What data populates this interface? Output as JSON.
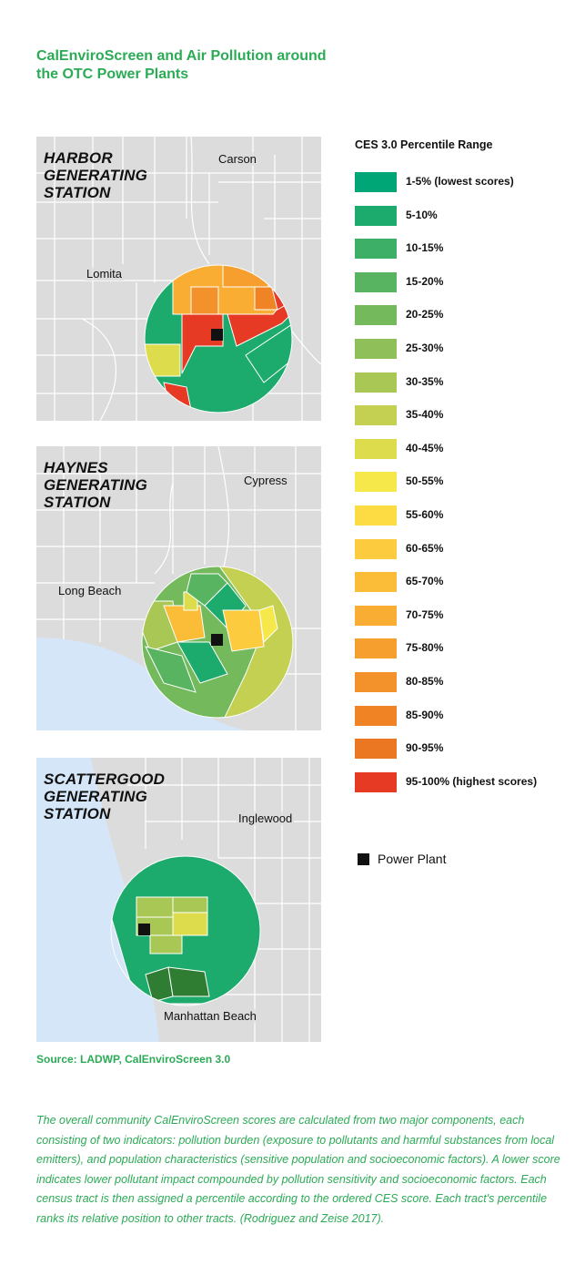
{
  "title": "CalEnviroScreen and Air Pollution around the OTC Power Plants",
  "maps": [
    {
      "station": "HARBOR GENERATING STATION",
      "cities": [
        "Carson",
        "Lomita"
      ]
    },
    {
      "station": "HAYNES GENERATING STATION",
      "cities": [
        "Cypress",
        "Long Beach"
      ]
    },
    {
      "station": "SCATTERGOOD GENERATING STATION",
      "cities": [
        "Inglewood",
        "Manhattan Beach"
      ]
    }
  ],
  "legend": {
    "title": "CES 3.0 Percentile Range",
    "items": [
      {
        "label": "1-5% (lowest scores)",
        "color": "#00a676"
      },
      {
        "label": "5-10%",
        "color": "#1cab6c"
      },
      {
        "label": "10-15%",
        "color": "#3daf66"
      },
      {
        "label": "15-20%",
        "color": "#58b460"
      },
      {
        "label": "20-25%",
        "color": "#74b95c"
      },
      {
        "label": "25-30%",
        "color": "#8ebf58"
      },
      {
        "label": "30-35%",
        "color": "#a8c755"
      },
      {
        "label": "35-40%",
        "color": "#c3d052"
      },
      {
        "label": "40-45%",
        "color": "#dcdc4c"
      },
      {
        "label": "50-55%",
        "color": "#f6e74a"
      },
      {
        "label": "55-60%",
        "color": "#fddb43"
      },
      {
        "label": "60-65%",
        "color": "#fdcb3e"
      },
      {
        "label": "65-70%",
        "color": "#fbbc38"
      },
      {
        "label": "70-75%",
        "color": "#f9ad33"
      },
      {
        "label": "75-80%",
        "color": "#f69f2e"
      },
      {
        "label": "80-85%",
        "color": "#f3922a"
      },
      {
        "label": "85-90%",
        "color": "#f08425"
      },
      {
        "label": "90-95%",
        "color": "#ec7722"
      },
      {
        "label": "95-100% (highest scores)",
        "color": "#e63a24"
      }
    ],
    "power_plant_label": "Power Plant"
  },
  "source": "Source: LADWP, CalEnviroScreen 3.0",
  "description": "The overall community CalEnviroScreen scores are calculated from two major components, each consisting of two indicators: pollution burden (exposure to pollutants and harmful substances from local emitters), and population characteristics (sensitive population and socioeconomic factors). A lower score indicates lower pollutant impact compounded by pollution sensitivity and socioeconomic factors. Each census tract is then assigned a percentile according to the ordered CES score. Each tract's percentile ranks its relative position to other tracts. (Rodriguez and Zeise 2017)."
}
